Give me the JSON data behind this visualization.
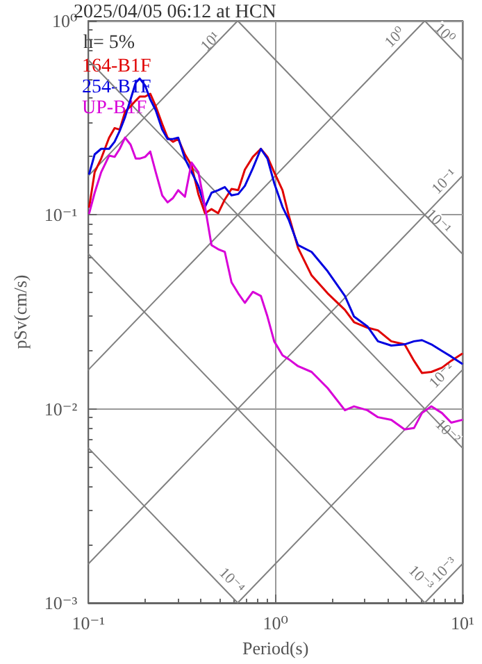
{
  "chart_data": {
    "type": "line",
    "title": "2025/04/05 06:12 at HCN",
    "xlabel": "Period(s)",
    "ylabel": "pSv(cm/s)",
    "log": "xy",
    "grid": true,
    "legend": "top left",
    "marker": "none",
    "xlim": [
      0.1,
      10
    ],
    "ylim": [
      0.001,
      1
    ],
    "xticks": [
      {
        "value": 0.1,
        "label": "10⁻¹"
      },
      {
        "value": 1,
        "label": "10⁰"
      },
      {
        "value": 10,
        "label": "10¹"
      }
    ],
    "yticks": [
      {
        "value": 0.001,
        "label": "10⁻³"
      },
      {
        "value": 0.01,
        "label": "10⁻²"
      },
      {
        "value": 0.1,
        "label": "10⁻¹"
      },
      {
        "value": 1,
        "label": "10⁰"
      }
    ],
    "x": [
      0.101,
      0.108,
      0.117,
      0.129,
      0.138,
      0.147,
      0.157,
      0.168,
      0.179,
      0.188,
      0.201,
      0.214,
      0.229,
      0.248,
      0.265,
      0.283,
      0.302,
      0.328,
      0.356,
      0.387,
      0.42,
      0.455,
      0.494,
      0.536,
      0.582,
      0.632,
      0.686,
      0.757,
      0.835,
      0.906,
      0.984,
      1.09,
      1.18,
      1.32,
      1.56,
      1.9,
      2.35,
      2.63,
      3.1,
      3.53,
      4.16,
      4.9,
      5.5,
      6.07,
      6.81,
      7.76,
      8.7,
      9.92
    ],
    "series": [
      {
        "name": "164-B1F",
        "color": "#e00000",
        "values": [
          0.11,
          0.166,
          0.195,
          0.25,
          0.28,
          0.275,
          0.34,
          0.363,
          0.388,
          0.407,
          0.407,
          0.421,
          0.363,
          0.294,
          0.25,
          0.238,
          0.246,
          0.205,
          0.18,
          0.128,
          0.102,
          0.107,
          0.102,
          0.12,
          0.136,
          0.134,
          0.171,
          0.199,
          0.219,
          0.199,
          0.166,
          0.134,
          0.0984,
          0.0676,
          0.0487,
          0.0394,
          0.0324,
          0.028,
          0.0262,
          0.0254,
          0.0223,
          0.0215,
          0.0177,
          0.0153,
          0.0155,
          0.0163,
          0.0177,
          0.0192
        ]
      },
      {
        "name": "254-B1F",
        "color": "#0000e0",
        "values": [
          0.163,
          0.205,
          0.219,
          0.219,
          0.238,
          0.271,
          0.319,
          0.394,
          0.48,
          0.504,
          0.464,
          0.394,
          0.346,
          0.275,
          0.246,
          0.246,
          0.25,
          0.195,
          0.166,
          0.141,
          0.11,
          0.13,
          0.134,
          0.139,
          0.126,
          0.128,
          0.141,
          0.174,
          0.219,
          0.195,
          0.146,
          0.11,
          0.0937,
          0.0698,
          0.0644,
          0.0512,
          0.0382,
          0.0299,
          0.0266,
          0.0223,
          0.0212,
          0.0215,
          0.0223,
          0.0226,
          0.0215,
          0.0199,
          0.0186,
          0.0171
        ]
      },
      {
        "name": "UP-B1F",
        "color": "#d800d8",
        "values": [
          0.102,
          0.13,
          0.166,
          0.202,
          0.199,
          0.219,
          0.25,
          0.23,
          0.195,
          0.195,
          0.199,
          0.212,
          0.166,
          0.126,
          0.116,
          0.122,
          0.134,
          0.124,
          0.186,
          0.166,
          0.11,
          0.0698,
          0.0665,
          0.0644,
          0.0449,
          0.0394,
          0.0352,
          0.0401,
          0.0382,
          0.0299,
          0.0223,
          0.0189,
          0.018,
          0.0166,
          0.0155,
          0.0128,
          0.00984,
          0.0103,
          0.00984,
          0.00906,
          0.00877,
          0.00783,
          0.00796,
          0.00952,
          0.0103,
          0.00952,
          0.00849,
          0.00877
        ]
      },
      {
        "color": "#808080",
        "x": [
          0.1,
          0.628
        ],
        "values": [
          0.159,
          1
        ]
      },
      {
        "color": "#808080",
        "x": [
          0.1,
          6.28
        ],
        "values": [
          0.0159,
          1
        ]
      },
      {
        "color": "#808080",
        "x": [
          0.1,
          10
        ],
        "values": [
          0.00159,
          0.159
        ]
      },
      {
        "color": "#808080",
        "x": [
          0.628,
          10
        ],
        "values": [
          0.001,
          0.0159
        ]
      },
      {
        "color": "#808080",
        "x": [
          6.28,
          10
        ],
        "values": [
          0.001,
          0.00159
        ]
      },
      {
        "color": "#808080",
        "x": [
          6.28,
          10
        ],
        "values": [
          1,
          0.628
        ]
      },
      {
        "color": "#808080",
        "x": [
          0.628,
          10
        ],
        "values": [
          1,
          0.0628
        ]
      },
      {
        "color": "#808080",
        "x": [
          0.1,
          10
        ],
        "values": [
          0.628,
          0.00628
        ]
      },
      {
        "color": "#808080",
        "x": [
          0.1,
          6.28
        ],
        "values": [
          0.0628,
          0.001
        ]
      },
      {
        "color": "#808080",
        "x": [
          0.1,
          0.628
        ],
        "values": [
          0.00628,
          0.001
        ]
      }
    ],
    "annotations": [
      "h= 5%",
      {
        "text": "10¹",
        "x": 0.45,
        "y": 0.78
      },
      {
        "text": "10⁰",
        "x": 4.37,
        "y": 0.82
      },
      {
        "text": "10⁰",
        "x": 8.0,
        "y": 0.86
      },
      {
        "text": "10⁻¹",
        "x": 8.02,
        "y": 0.148
      },
      {
        "text": "10⁻¹",
        "x": 7.4,
        "y": 0.092
      },
      {
        "text": "10⁻²",
        "x": 7.76,
        "y": 0.0148
      },
      {
        "text": "10⁻²",
        "x": 8.3,
        "y": 0.0076
      },
      {
        "text": "10⁻³",
        "x": 5.97,
        "y": 0.00134
      },
      {
        "text": "10⁻³",
        "x": 8.02,
        "y": 0.00148
      },
      {
        "text": "10⁻⁴",
        "x": 0.582,
        "y": 0.0013
      }
    ]
  }
}
